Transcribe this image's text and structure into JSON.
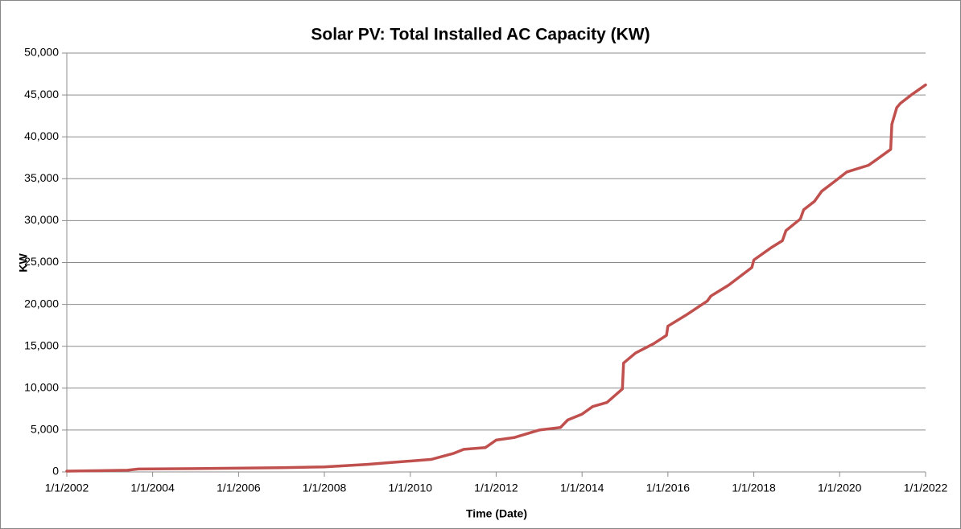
{
  "chart_data": {
    "type": "line",
    "title": "Solar PV: Total Installed AC Capacity (KW)",
    "x_label": "Time (Date)",
    "y_label": "KW",
    "x": [
      "2002-01-01",
      "2003-06-01",
      "2003-09-01",
      "2005-01-01",
      "2007-01-01",
      "2008-01-01",
      "2009-01-01",
      "2009-07-01",
      "2010-01-01",
      "2010-07-01",
      "2011-01-01",
      "2011-04-01",
      "2011-10-01",
      "2012-01-01",
      "2012-06-01",
      "2013-01-01",
      "2013-07-01",
      "2013-09-01",
      "2014-01-01",
      "2014-04-01",
      "2014-08-01",
      "2014-12-10",
      "2014-12-20",
      "2015-04-01",
      "2015-09-01",
      "2015-12-20",
      "2016-01-01",
      "2016-06-01",
      "2016-12-01",
      "2017-01-01",
      "2017-06-01",
      "2017-12-15",
      "2018-01-01",
      "2018-06-01",
      "2018-09-01",
      "2018-10-01",
      "2019-02-01",
      "2019-03-01",
      "2019-06-01",
      "2019-08-01",
      "2019-12-01",
      "2020-03-01",
      "2020-09-01",
      "2020-11-01",
      "2021-03-10",
      "2021-03-20",
      "2021-05-01",
      "2021-06-01",
      "2021-09-01",
      "2022-01-01"
    ],
    "series": [
      {
        "name": "KW",
        "color": "#c0504d",
        "values": [
          100,
          200,
          350,
          400,
          500,
          600,
          900,
          1100,
          1300,
          1500,
          2200,
          2700,
          2900,
          3800,
          4100,
          5000,
          5300,
          6200,
          6900,
          7800,
          8300,
          9900,
          13000,
          14200,
          15300,
          16300,
          17400,
          18700,
          20400,
          21000,
          22300,
          24400,
          25300,
          26800,
          27600,
          28800,
          30200,
          31300,
          32300,
          33500,
          34800,
          35800,
          36600,
          37200,
          38500,
          41500,
          43500,
          44000,
          45000,
          46200
        ]
      }
    ],
    "xlim": [
      "2002-01-01",
      "2022-01-01"
    ],
    "xticks": [
      {
        "value": "2002-01-01",
        "label": "1/1/2002"
      },
      {
        "value": "2004-01-01",
        "label": "1/1/2004"
      },
      {
        "value": "2006-01-01",
        "label": "1/1/2006"
      },
      {
        "value": "2008-01-01",
        "label": "1/1/2008"
      },
      {
        "value": "2010-01-01",
        "label": "1/1/2010"
      },
      {
        "value": "2012-01-01",
        "label": "1/1/2012"
      },
      {
        "value": "2014-01-01",
        "label": "1/1/2014"
      },
      {
        "value": "2016-01-01",
        "label": "1/1/2016"
      },
      {
        "value": "2018-01-01",
        "label": "1/1/2018"
      },
      {
        "value": "2020-01-01",
        "label": "1/1/2020"
      },
      {
        "value": "2022-01-01",
        "label": "1/1/2022"
      }
    ],
    "ylim": [
      0,
      50000
    ],
    "yticks": [
      0,
      {
        "value": 5000,
        "label": "5,000"
      },
      {
        "value": 10000,
        "label": "10,000"
      },
      {
        "value": 15000,
        "label": "15,000"
      },
      {
        "value": 20000,
        "label": "20,000"
      },
      {
        "value": 25000,
        "label": "25,000"
      },
      {
        "value": 30000,
        "label": "30,000"
      },
      {
        "value": 35000,
        "label": "35,000"
      },
      {
        "value": 40000,
        "label": "40,000"
      },
      {
        "value": 45000,
        "label": "45,000"
      },
      {
        "value": 50000,
        "label": "50,000"
      }
    ],
    "grid": true
  }
}
